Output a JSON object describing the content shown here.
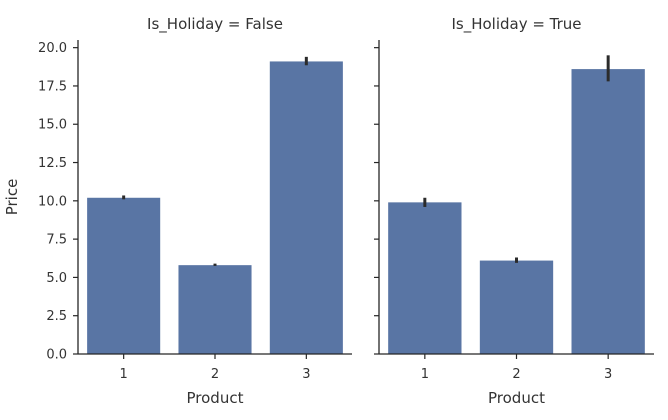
{
  "chart_data": [
    {
      "type": "bar",
      "title": "Is_Holiday = False",
      "xlabel": "Product",
      "ylabel": "Price",
      "categories": [
        "1",
        "2",
        "3"
      ],
      "values": [
        10.2,
        5.8,
        19.1
      ],
      "error_low": [
        10.1,
        5.75,
        18.85
      ],
      "error_high": [
        10.35,
        5.9,
        19.4
      ],
      "ylim": [
        0,
        20.5
      ],
      "yticks": [
        "0.0",
        "2.5",
        "5.0",
        "7.5",
        "10.0",
        "12.5",
        "15.0",
        "17.5",
        "20.0"
      ],
      "color": "#5975a4",
      "grid": false
    },
    {
      "type": "bar",
      "title": "Is_Holiday = True",
      "xlabel": "Product",
      "ylabel": "",
      "categories": [
        "1",
        "2",
        "3"
      ],
      "values": [
        9.9,
        6.1,
        18.6
      ],
      "error_low": [
        9.6,
        5.95,
        17.8
      ],
      "error_high": [
        10.2,
        6.3,
        19.5
      ],
      "ylim": [
        0,
        20.5
      ],
      "yticks": [
        "0.0",
        "2.5",
        "5.0",
        "7.5",
        "10.0",
        "12.5",
        "15.0",
        "17.5",
        "20.0"
      ],
      "color": "#5975a4",
      "grid": false
    }
  ]
}
